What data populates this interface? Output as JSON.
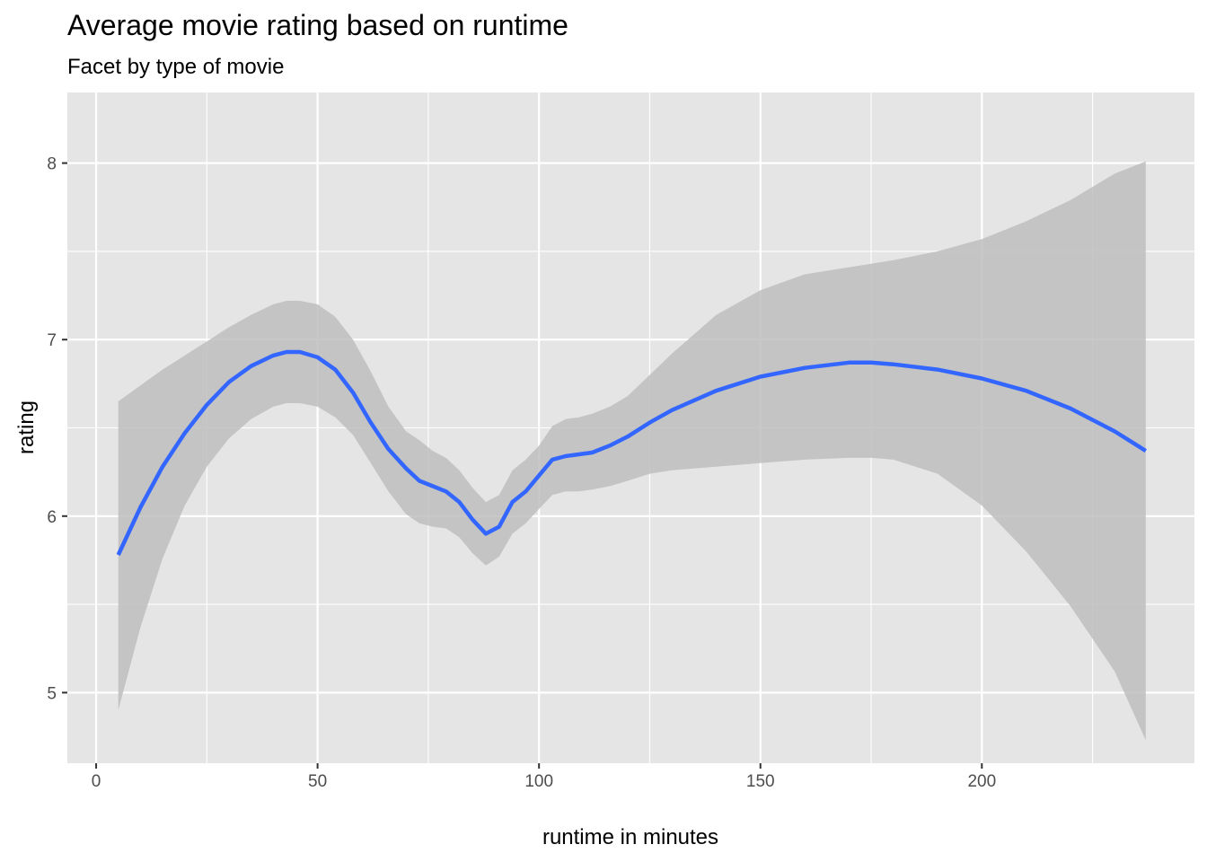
{
  "chart_data": {
    "type": "line",
    "title": "Average movie rating based on runtime",
    "subtitle": "Facet by type of movie",
    "xlabel": "runtime in minutes",
    "ylabel": "rating",
    "xlim": [
      -6.5,
      248
    ],
    "ylim": [
      4.6,
      8.4
    ],
    "x_ticks": [
      0,
      50,
      100,
      150,
      200
    ],
    "y_ticks": [
      5,
      6,
      7,
      8
    ],
    "grid": true,
    "legend": "none",
    "colors": {
      "panel_background": "#e5e5e5",
      "grid": "#ffffff",
      "line": "#3366ff",
      "ribbon": "#bebebe",
      "tick_label": "#4d4d4d",
      "tick_mark": "#333333"
    },
    "series": [
      {
        "x": [
          5,
          10,
          15,
          20,
          25,
          30,
          35,
          40,
          43,
          46,
          50,
          54,
          58,
          62,
          66,
          70,
          73,
          76,
          79,
          82,
          85,
          88,
          91,
          94,
          97,
          100,
          103,
          106,
          109,
          112,
          116,
          120,
          125,
          130,
          140,
          150,
          160,
          170,
          175,
          180,
          190,
          200,
          210,
          220,
          230,
          237
        ],
        "y": [
          5.78,
          6.05,
          6.28,
          6.47,
          6.63,
          6.76,
          6.85,
          6.91,
          6.93,
          6.93,
          6.9,
          6.83,
          6.7,
          6.53,
          6.38,
          6.27,
          6.2,
          6.17,
          6.14,
          6.08,
          5.98,
          5.9,
          5.94,
          6.08,
          6.14,
          6.23,
          6.32,
          6.34,
          6.35,
          6.36,
          6.4,
          6.45,
          6.53,
          6.6,
          6.71,
          6.79,
          6.84,
          6.87,
          6.87,
          6.86,
          6.83,
          6.78,
          6.71,
          6.61,
          6.48,
          6.37
        ],
        "lower": [
          4.9,
          5.37,
          5.76,
          6.06,
          6.28,
          6.44,
          6.55,
          6.62,
          6.64,
          6.64,
          6.62,
          6.56,
          6.46,
          6.3,
          6.14,
          6.01,
          5.96,
          5.94,
          5.93,
          5.88,
          5.79,
          5.72,
          5.77,
          5.9,
          5.96,
          6.04,
          6.12,
          6.14,
          6.14,
          6.15,
          6.17,
          6.2,
          6.24,
          6.26,
          6.28,
          6.3,
          6.32,
          6.33,
          6.33,
          6.32,
          6.24,
          6.06,
          5.8,
          5.49,
          5.12,
          4.73
        ],
        "upper": [
          6.65,
          6.74,
          6.83,
          6.91,
          6.99,
          7.07,
          7.14,
          7.2,
          7.22,
          7.22,
          7.2,
          7.13,
          7.0,
          6.82,
          6.62,
          6.48,
          6.43,
          6.37,
          6.33,
          6.26,
          6.16,
          6.08,
          6.12,
          6.26,
          6.32,
          6.4,
          6.51,
          6.55,
          6.56,
          6.58,
          6.62,
          6.68,
          6.8,
          6.92,
          7.14,
          7.28,
          7.37,
          7.41,
          7.43,
          7.45,
          7.5,
          7.57,
          7.67,
          7.79,
          7.94,
          8.01
        ]
      }
    ]
  }
}
